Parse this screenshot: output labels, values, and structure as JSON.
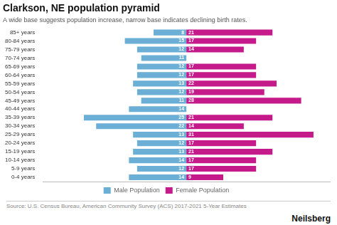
{
  "chart_data": {
    "type": "pyramid",
    "orientation": "horizontal",
    "title": "Clarkson, NE population pyramid",
    "subtitle": "A wide base suggests population increase, narrow base indicates declining birth rates.",
    "annotations": [
      "Source: U.S. Census Bureau, American Community Survey (ACS) 2017-2021 5-Year Estimates",
      "Neilsberg"
    ],
    "categories": [
      "0-4 years",
      "5-9 years",
      "10-14 years",
      "15-19 years",
      "20-24 years",
      "25-29 years",
      "30-34 years",
      "35-39 years",
      "40-44 years",
      "45-49 years",
      "50-54 years",
      "55-59 years",
      "60-64 years",
      "65-69 years",
      "70-74 years",
      "75-79 years",
      "80-84 years",
      "85+ years"
    ],
    "series": [
      {
        "name": "Male Population",
        "color": "#6baed6",
        "values": [
          14,
          12,
          14,
          13,
          12,
          13,
          22,
          25,
          14,
          11,
          12,
          13,
          12,
          12,
          11,
          12,
          15,
          8
        ]
      },
      {
        "name": "Female Population",
        "color": "#c51b8a",
        "values": [
          9,
          17,
          17,
          21,
          17,
          31,
          14,
          21,
          0,
          28,
          19,
          22,
          17,
          17,
          0,
          14,
          17,
          21
        ]
      }
    ],
    "xlim": [
      -35,
      35
    ],
    "tick_labels": "y",
    "grid": false,
    "legend": "bottom",
    "data_labels": true
  }
}
